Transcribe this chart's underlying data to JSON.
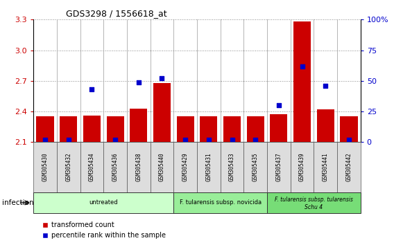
{
  "title": "GDS3298 / 1556618_at",
  "samples": [
    "GSM305430",
    "GSM305432",
    "GSM305434",
    "GSM305436",
    "GSM305438",
    "GSM305440",
    "GSM305429",
    "GSM305431",
    "GSM305433",
    "GSM305435",
    "GSM305437",
    "GSM305439",
    "GSM305441",
    "GSM305442"
  ],
  "transformed_count": [
    2.35,
    2.35,
    2.36,
    2.35,
    2.43,
    2.68,
    2.35,
    2.35,
    2.35,
    2.35,
    2.37,
    3.28,
    2.42,
    2.35
  ],
  "percentile_rank": [
    2,
    2,
    43,
    2,
    49,
    52,
    2,
    2,
    2,
    2,
    30,
    62,
    46,
    2
  ],
  "ylim_left": [
    2.1,
    3.3
  ],
  "ylim_right": [
    0,
    100
  ],
  "yticks_left": [
    2.1,
    2.4,
    2.7,
    3.0,
    3.3
  ],
  "yticks_right": [
    0,
    25,
    50,
    75,
    100
  ],
  "bar_color": "#cc0000",
  "dot_color": "#0000cc",
  "groups": [
    {
      "label": "untreated",
      "start": 0,
      "end": 6,
      "color": "#ccffcc"
    },
    {
      "label": "F. tularensis subsp. novicida",
      "start": 6,
      "end": 10,
      "color": "#99ee99"
    },
    {
      "label": "F. tularensis subsp. tularensis\nSchu 4",
      "start": 10,
      "end": 14,
      "color": "#77dd77"
    }
  ],
  "xlabel_infection": "infection",
  "legend": [
    "transformed count",
    "percentile rank within the sample"
  ],
  "grid_color": "#888888",
  "bg_color": "#ffffff",
  "tick_label_color_left": "#cc0000",
  "tick_label_color_right": "#0000cc",
  "sample_box_color": "#dddddd",
  "separator_color": "#999999"
}
